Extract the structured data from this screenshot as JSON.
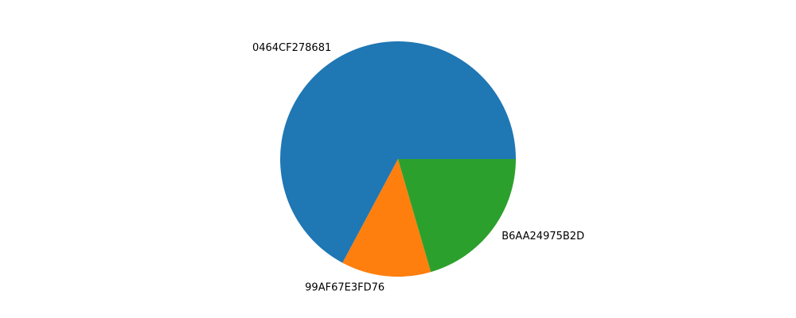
{
  "chart_data": {
    "type": "pie",
    "start_angle_deg": 0,
    "direction": "counterclockwise",
    "slices": [
      {
        "label": "0464CF278681",
        "value": 67.2,
        "color": "#1f77b4"
      },
      {
        "label": "99AF67E3FD76",
        "value": 12.3,
        "color": "#ff7f0e"
      },
      {
        "label": "B6AA24975B2D",
        "value": 20.5,
        "color": "#2ca02c"
      }
    ]
  }
}
